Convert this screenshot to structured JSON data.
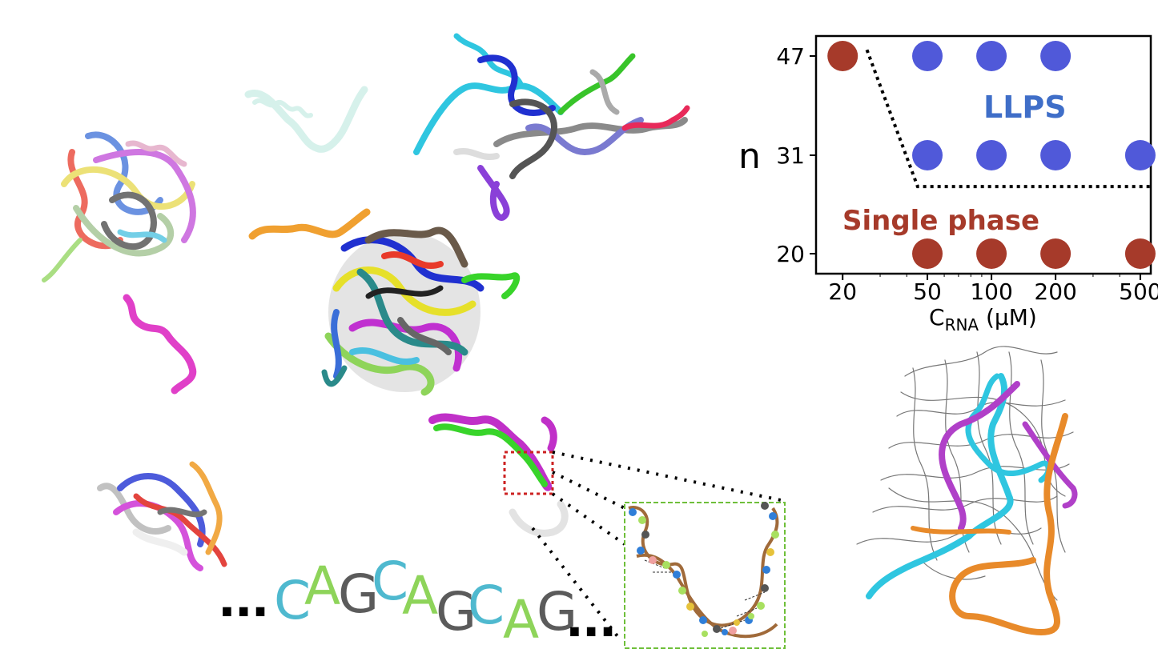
{
  "colors": {
    "llps": "#5059d9",
    "single": "#a63a2a",
    "llps_text": "#3f6ec8",
    "single_text": "#a63a2a",
    "seq_C": "#4fb9cf",
    "seq_A": "#8ed45a",
    "seq_G": "#5b5b5b"
  },
  "sequence": {
    "prefix": "...",
    "letters": [
      "C",
      "A",
      "G",
      "C",
      "A",
      "G",
      "C",
      "A",
      "G"
    ],
    "suffix": "..."
  },
  "chart_data": {
    "type": "scatter",
    "x": [
      20,
      50,
      100,
      200,
      500
    ],
    "x_tick_labels": [
      "20",
      "50",
      "100",
      "200",
      "500"
    ],
    "y_tick_labels": [
      "20",
      "31",
      "47"
    ],
    "xlabel_main": "C",
    "xlabel_sub": "RNA",
    "xlabel_unit": " (µM)",
    "ylabel": "n",
    "xscale": "log",
    "xlim": [
      15,
      560
    ],
    "grid": false,
    "series": [
      {
        "name": "LLPS",
        "points": [
          [
            50,
            47
          ],
          [
            100,
            47
          ],
          [
            200,
            47
          ],
          [
            50,
            31
          ],
          [
            100,
            31
          ],
          [
            200,
            31
          ],
          [
            500,
            31
          ]
        ]
      },
      {
        "name": "Single phase",
        "points": [
          [
            20,
            47
          ],
          [
            50,
            20
          ],
          [
            100,
            20
          ],
          [
            200,
            20
          ],
          [
            500,
            20
          ]
        ]
      }
    ],
    "annotations": [
      "LLPS",
      "Single phase"
    ],
    "boundary": [
      [
        26,
        48
      ],
      [
        45,
        27.5
      ],
      [
        560,
        27.5
      ]
    ]
  }
}
